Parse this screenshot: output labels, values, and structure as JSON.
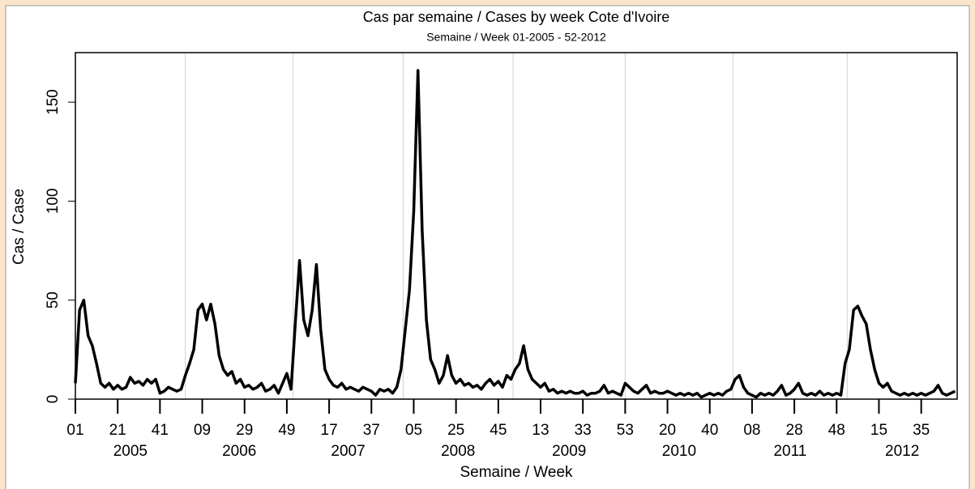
{
  "chart_data": {
    "type": "line",
    "title": "Cas par semaine / Cases by week Cote d'Ivoire",
    "subtitle": "Semaine / Week 01-2005 - 52-2012",
    "xlabel": "Semaine / Week",
    "ylabel": "Cas / Case",
    "color": "#000000",
    "x": [
      0,
      2,
      4,
      6,
      8,
      10,
      12,
      14,
      16,
      18,
      20,
      22,
      24,
      26,
      28,
      30,
      32,
      34,
      36,
      38,
      40,
      42,
      44,
      46,
      48,
      50,
      52,
      54,
      56,
      58,
      60,
      62,
      64,
      66,
      68,
      70,
      72,
      74,
      76,
      78,
      80,
      82,
      84,
      86,
      88,
      90,
      92,
      94,
      96,
      98,
      100,
      102,
      104,
      106,
      108,
      110,
      112,
      114,
      116,
      118,
      120,
      122,
      124,
      126,
      128,
      130,
      132,
      134,
      136,
      138,
      140,
      142,
      144,
      146,
      148,
      150,
      152,
      154,
      156,
      158,
      160,
      162,
      164,
      166,
      168,
      170,
      172,
      174,
      176,
      178,
      180,
      182,
      184,
      186,
      188,
      190,
      192,
      194,
      196,
      198,
      200,
      202,
      204,
      206,
      208,
      210,
      212,
      214,
      216,
      218,
      220,
      222,
      224,
      226,
      228,
      230,
      232,
      234,
      236,
      238,
      240,
      242,
      244,
      246,
      248,
      250,
      252,
      254,
      256,
      258,
      260,
      262,
      264,
      266,
      268,
      270,
      272,
      274,
      276,
      278,
      280,
      282,
      284,
      286,
      288,
      290,
      292,
      294,
      296,
      298,
      300,
      302,
      304,
      306,
      308,
      310,
      312,
      314,
      316,
      318,
      320,
      322,
      324,
      326,
      328,
      330,
      332,
      334,
      336,
      338,
      340,
      342,
      344,
      346,
      348,
      350,
      352,
      354,
      356,
      358,
      360,
      362,
      364,
      366,
      368,
      370,
      372,
      374,
      376,
      378,
      380,
      382,
      384,
      386,
      388,
      390,
      392,
      394,
      396,
      398,
      400,
      402,
      404,
      406,
      408,
      410,
      412,
      414,
      416
    ],
    "values": [
      8,
      45,
      50,
      32,
      27,
      18,
      8,
      6,
      8,
      5,
      7,
      5,
      6,
      11,
      8,
      9,
      7,
      10,
      8,
      10,
      3,
      4,
      6,
      5,
      4,
      5,
      12,
      18,
      25,
      45,
      48,
      40,
      48,
      38,
      22,
      15,
      12,
      14,
      8,
      10,
      6,
      7,
      5,
      6,
      8,
      4,
      5,
      7,
      3,
      8,
      13,
      5,
      38,
      70,
      40,
      32,
      45,
      68,
      35,
      15,
      10,
      7,
      6,
      8,
      5,
      6,
      5,
      4,
      6,
      5,
      4,
      2,
      5,
      4,
      5,
      3,
      6,
      15,
      35,
      55,
      95,
      166,
      85,
      40,
      20,
      15,
      8,
      12,
      22,
      12,
      8,
      10,
      7,
      8,
      6,
      7,
      5,
      8,
      10,
      7,
      9,
      6,
      12,
      10,
      15,
      18,
      27,
      15,
      10,
      8,
      6,
      8,
      4,
      5,
      3,
      4,
      3,
      4,
      3,
      3,
      4,
      2,
      3,
      3,
      4,
      7,
      3,
      4,
      3,
      2,
      8,
      6,
      4,
      3,
      5,
      7,
      3,
      4,
      3,
      3,
      4,
      3,
      2,
      3,
      2,
      3,
      2,
      3,
      1,
      2,
      3,
      2,
      3,
      2,
      4,
      5,
      10,
      12,
      6,
      3,
      2,
      1,
      3,
      2,
      3,
      2,
      4,
      7,
      2,
      3,
      5,
      8,
      3,
      2,
      3,
      2,
      4,
      2,
      3,
      2,
      3,
      2,
      18,
      25,
      45,
      47,
      42,
      38,
      25,
      15,
      8,
      6,
      8,
      4,
      3,
      2,
      3,
      2,
      3,
      2,
      3,
      2,
      3,
      4,
      7,
      3,
      2,
      3,
      4
    ],
    "xlim": [
      0,
      417
    ],
    "xticks": [
      {
        "value": 0,
        "label": "01"
      },
      {
        "value": 20,
        "label": "21"
      },
      {
        "value": 40,
        "label": "41"
      },
      {
        "value": 60,
        "label": "09"
      },
      {
        "value": 80,
        "label": "29"
      },
      {
        "value": 100,
        "label": "49"
      },
      {
        "value": 120,
        "label": "17"
      },
      {
        "value": 140,
        "label": "37"
      },
      {
        "value": 160,
        "label": "05"
      },
      {
        "value": 180,
        "label": "25"
      },
      {
        "value": 200,
        "label": "45"
      },
      {
        "value": 220,
        "label": "13"
      },
      {
        "value": 240,
        "label": "33"
      },
      {
        "value": 260,
        "label": "53"
      },
      {
        "value": 280,
        "label": "20"
      },
      {
        "value": 300,
        "label": "40"
      },
      {
        "value": 320,
        "label": "08"
      },
      {
        "value": 340,
        "label": "28"
      },
      {
        "value": 360,
        "label": "48"
      },
      {
        "value": 380,
        "label": "15"
      },
      {
        "value": 400,
        "label": "35"
      }
    ],
    "year_starts": [
      0,
      52,
      103,
      155,
      207,
      260,
      311,
      365
    ],
    "year_labels": [
      "2005",
      "2006",
      "2007",
      "2008",
      "2009",
      "2010",
      "2011",
      "2012"
    ],
    "ylim": [
      0,
      175
    ],
    "yticks": [
      0,
      50,
      100,
      150
    ],
    "grid": true
  }
}
